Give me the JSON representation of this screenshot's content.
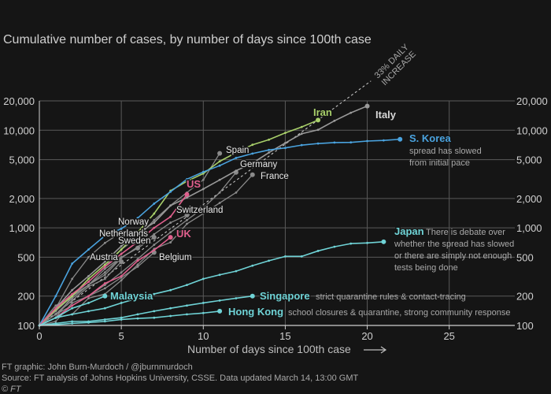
{
  "title": "Cumulative number of cases, by number of days since 100th case",
  "footer": {
    "credit": "FT graphic: John Burn-Murdoch / @jburnmurdoch",
    "source": "Source: FT analysis of Johns Hopkins University, CSSE. Data updated March 14, 13:00 GMT",
    "copyright": "© FT"
  },
  "reference_line_label": [
    "33% DAILY",
    "INCREASE"
  ],
  "colors": {
    "background": "#151515",
    "grid": "#5a5a5a",
    "axis": "#cfcfcf",
    "gray_series": "#8a8a8a",
    "annotation": "#a9a9a9"
  },
  "chart_data": {
    "type": "line",
    "title": "Cumulative number of cases, by number of days since 100th case",
    "xlabel": "Number of days since 100th case",
    "ylabel": "",
    "x_ticks": [
      0,
      5,
      10,
      15,
      20,
      25
    ],
    "y_ticks": [
      100,
      200,
      500,
      1000,
      2000,
      5000,
      10000,
      20000
    ],
    "y_tick_labels": [
      "100",
      "200",
      "500",
      "1,000",
      "2,000",
      "5,000",
      "10,000",
      "20,000"
    ],
    "xlim": [
      0,
      29
    ],
    "ylim": [
      100,
      20000
    ],
    "yscale": "log",
    "grid": true,
    "highlighted_series": [
      {
        "name": "Iran",
        "color": "#a8cf6a",
        "x": [
          0,
          1,
          2,
          3,
          4,
          5,
          6,
          7,
          8,
          9,
          10,
          11,
          12,
          13,
          14,
          15,
          16,
          17
        ],
        "y": [
          100,
          145,
          200,
          300,
          420,
          600,
          900,
          1400,
          2400,
          3000,
          3600,
          4800,
          5900,
          7100,
          8000,
          9400,
          10800,
          12700
        ]
      },
      {
        "name": "Italy",
        "color": "#9a9a9a",
        "x": [
          0,
          1,
          2,
          3,
          4,
          5,
          6,
          7,
          8,
          9,
          10,
          11,
          12,
          13,
          14,
          15,
          16,
          17,
          18,
          19,
          20
        ],
        "y": [
          100,
          150,
          230,
          320,
          450,
          650,
          890,
          1130,
          1690,
          2040,
          2500,
          3100,
          3850,
          4600,
          5900,
          7400,
          9200,
          10100,
          12500,
          15100,
          17700
        ]
      },
      {
        "name": "S. Korea",
        "color": "#4aa3df",
        "x": [
          0,
          1,
          2,
          3,
          4,
          5,
          6,
          7,
          8,
          9,
          10,
          11,
          12,
          13,
          14,
          15,
          16,
          17,
          18,
          19,
          20,
          21,
          22
        ],
        "y": [
          100,
          200,
          430,
          600,
          830,
          980,
          1260,
          1770,
          2340,
          3150,
          3740,
          4340,
          5200,
          5770,
          6280,
          6590,
          7040,
          7310,
          7480,
          7510,
          7750,
          7870,
          8080
        ]
      },
      {
        "name": "US",
        "color": "#e0608d",
        "x": [
          0,
          1,
          2,
          3,
          4,
          5,
          6,
          7,
          8,
          9
        ],
        "y": [
          100,
          150,
          210,
          280,
          400,
          540,
          720,
          1000,
          1300,
          2200
        ]
      },
      {
        "name": "UK",
        "color": "#e0608d",
        "x": [
          0,
          1,
          2,
          3,
          4,
          5,
          6,
          7,
          8
        ],
        "y": [
          100,
          120,
          160,
          200,
          270,
          320,
          460,
          590,
          800
        ]
      },
      {
        "name": "Japan",
        "color": "#6fd3d6",
        "x": [
          0,
          1,
          2,
          3,
          4,
          5,
          6,
          7,
          8,
          9,
          10,
          11,
          12,
          13,
          14,
          15,
          16,
          17,
          18,
          19,
          20,
          21
        ],
        "y": [
          100,
          120,
          130,
          140,
          150,
          170,
          190,
          210,
          230,
          260,
          300,
          330,
          360,
          410,
          460,
          510,
          510,
          580,
          640,
          690,
          700,
          720
        ]
      },
      {
        "name": "Malaysia",
        "color": "#6fd3d6",
        "x": [
          0,
          1,
          2,
          3,
          4
        ],
        "y": [
          100,
          120,
          150,
          170,
          200
        ]
      },
      {
        "name": "Singapore",
        "color": "#6fd3d6",
        "x": [
          0,
          1,
          2,
          3,
          4,
          5,
          6,
          7,
          8,
          9,
          10,
          11,
          12,
          13
        ],
        "y": [
          100,
          105,
          110,
          110,
          115,
          120,
          130,
          140,
          150,
          160,
          170,
          180,
          190,
          200
        ]
      },
      {
        "name": "Hong Kong",
        "color": "#6fd3d6",
        "x": [
          0,
          1,
          2,
          3,
          4,
          5,
          6,
          7,
          8,
          9,
          10,
          11
        ],
        "y": [
          100,
          102,
          105,
          107,
          110,
          115,
          118,
          120,
          125,
          130,
          134,
          140
        ]
      }
    ],
    "gray_series": [
      {
        "name": "Spain",
        "x": [
          0,
          1,
          2,
          3,
          4,
          5,
          6,
          7,
          8,
          9,
          10,
          11
        ],
        "y": [
          100,
          140,
          200,
          280,
          400,
          600,
          800,
          1200,
          1700,
          2300,
          3100,
          5800
        ]
      },
      {
        "name": "Germany",
        "x": [
          0,
          1,
          2,
          3,
          4,
          5,
          6,
          7,
          8,
          9,
          10,
          11,
          12
        ],
        "y": [
          100,
          130,
          160,
          200,
          260,
          350,
          480,
          670,
          900,
          1200,
          1600,
          2300,
          3700
        ]
      },
      {
        "name": "France",
        "x": [
          0,
          1,
          2,
          3,
          4,
          5,
          6,
          7,
          8,
          9,
          10,
          11,
          12,
          13
        ],
        "y": [
          100,
          120,
          130,
          190,
          210,
          290,
          420,
          610,
          710,
          1100,
          1400,
          1800,
          2300,
          3500
        ]
      },
      {
        "name": "Switzerland",
        "x": [
          0,
          1,
          2,
          3,
          4,
          5,
          6,
          7,
          8,
          9
        ],
        "y": [
          100,
          120,
          200,
          260,
          330,
          490,
          640,
          860,
          1130,
          1350
        ]
      },
      {
        "name": "Norway",
        "x": [
          0,
          1,
          2,
          3,
          4,
          5
        ],
        "y": [
          100,
          150,
          300,
          500,
          700,
          900
        ]
      },
      {
        "name": "Netherlands",
        "x": [
          0,
          1,
          2,
          3,
          4,
          5,
          6,
          7
        ],
        "y": [
          100,
          130,
          190,
          260,
          380,
          500,
          620,
          800
        ]
      },
      {
        "name": "Sweden",
        "x": [
          0,
          1,
          2,
          3,
          4,
          5,
          6
        ],
        "y": [
          100,
          160,
          200,
          260,
          350,
          500,
          620
        ]
      },
      {
        "name": "Austria",
        "x": [
          0,
          1,
          2,
          3,
          4,
          5
        ],
        "y": [
          100,
          130,
          180,
          250,
          300,
          450
        ]
      },
      {
        "name": "Belgium",
        "x": [
          0,
          1,
          2,
          3,
          4,
          5,
          6,
          7
        ],
        "y": [
          100,
          110,
          170,
          200,
          240,
          310,
          400,
          560
        ]
      }
    ],
    "reference_line": {
      "label": "33% DAILY INCREASE",
      "daily_growth": 0.33
    },
    "annotations": [
      {
        "text": [
          "spread has slowed",
          "from initial pace"
        ]
      },
      {
        "text": [
          "There is debate over",
          "whether the spread has slowed",
          "or there are simply not enough",
          "tests being done"
        ]
      },
      {
        "text": [
          "strict quarantine rules & contact-tracing"
        ]
      },
      {
        "text": [
          "school closures & quarantine, strong community response"
        ]
      }
    ]
  }
}
